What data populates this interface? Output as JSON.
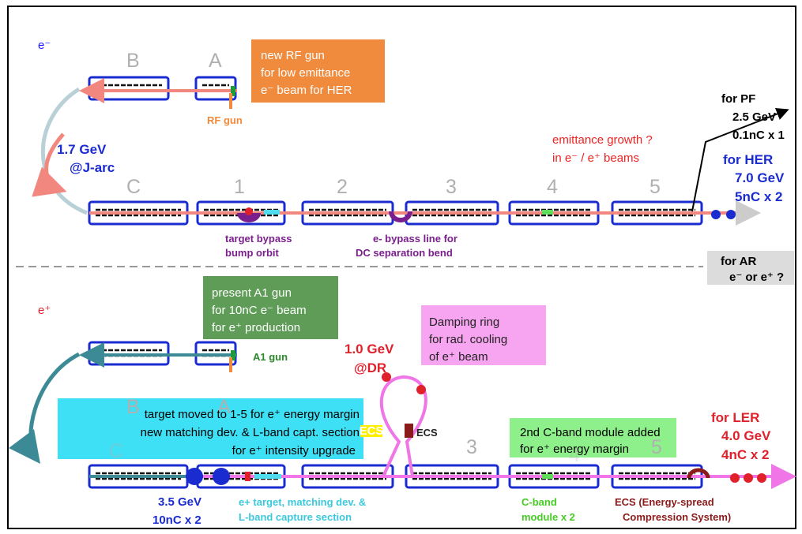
{
  "electron": {
    "label": "e⁻",
    "sections": {
      "B": "B",
      "A": "A",
      "C": "C",
      "s1": "1",
      "s2": "2",
      "s3": "3",
      "s4": "4",
      "s5": "5"
    },
    "rf_gun_box": [
      "new RF gun",
      "for low emittance",
      "e⁻ beam for HER"
    ],
    "rf_gun": "RF gun",
    "j_arc": [
      "1.7 GeV",
      "@J-arc"
    ],
    "pf": [
      "for PF",
      "2.5 GeV",
      "0.1nC x 1"
    ],
    "emittance": [
      "emittance growth ?",
      "in e⁻ / e⁺ beams"
    ],
    "her": [
      "for HER",
      "7.0 GeV",
      "5nC x 2"
    ],
    "target_bypass": [
      "target bypass",
      "bump orbit"
    ],
    "bypass_line": [
      "e- bypass line for",
      "DC separation bend"
    ]
  },
  "ar": [
    "for AR",
    "e⁻ or e⁺ ?"
  ],
  "positron": {
    "label": "e⁺",
    "sections": {
      "B": "B",
      "A": "A",
      "C": "C",
      "s3": "3",
      "s4": "4",
      "s5": "5"
    },
    "a1_gun_box": [
      "present A1 gun",
      "for 10nC e⁻ beam",
      "for e⁺ production"
    ],
    "a1_gun": "A1 gun",
    "dr": [
      "1.0 GeV",
      "@DR"
    ],
    "damping_box": [
      "Damping ring",
      "for rad. cooling",
      "of e⁺ beam"
    ],
    "target_box": [
      "target moved to 1-5 for e⁺ energy margin",
      "new matching dev. & L-band capt. section",
      "for e⁺ intensity upgrade"
    ],
    "ecs_yellow": "ECS",
    "ecs_red": "ECS",
    "cband_box": [
      "2nd C-band module added",
      "for e⁺ energy margin"
    ],
    "ler": [
      "for LER",
      "4.0 GeV",
      "4nC x 2"
    ],
    "injection": [
      "3.5 GeV",
      "10nC x 2"
    ],
    "target_note": [
      "e+ target, matching dev. &",
      "L-band capture section"
    ],
    "cband_note": [
      "C-band",
      "module x 2"
    ],
    "ecs_note": [
      "ECS (Energy-spread",
      "Compression System)"
    ]
  }
}
